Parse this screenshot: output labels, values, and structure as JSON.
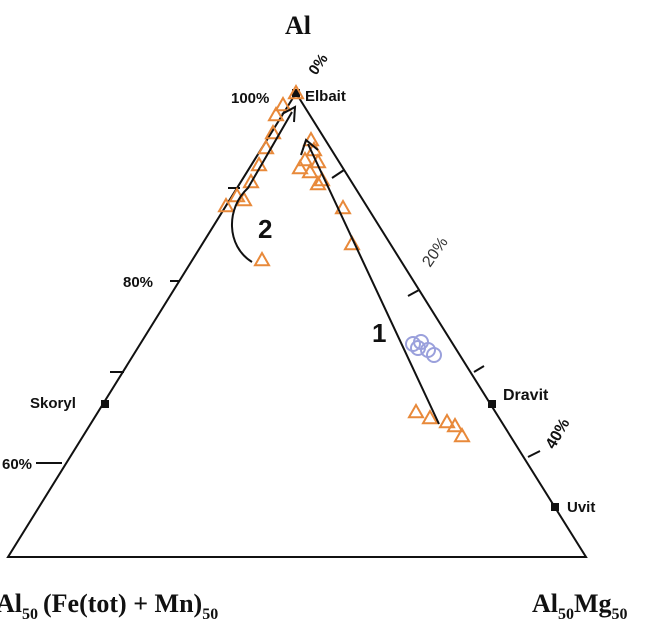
{
  "chart_data": {
    "type": "ternary",
    "vertices": {
      "top": "Al",
      "bottom_left": "Al50(Fe(tot) + Mn)50",
      "bottom_right": "Al50Mg50"
    },
    "vertex_parts": {
      "bottom_left": {
        "base": "Al",
        "sub1": "50",
        "mid": "(Fe(tot) + Mn)",
        "sub2": "50"
      },
      "bottom_right": {
        "base": "Al",
        "sub1": "50",
        "mid": "Mg",
        "sub2": "50"
      }
    },
    "left_axis_ticks": [
      "100%",
      "80%",
      "60%"
    ],
    "right_axis_ticks": [
      "0%",
      "20%",
      "40%"
    ],
    "end_members": [
      "Elbait",
      "Skoryl",
      "Dravit",
      "Uvit"
    ],
    "arrow_labels": [
      "1",
      "2"
    ],
    "colors": {
      "triangles": "#e8893a",
      "circles": "#9aa0dc",
      "axes": "#111111"
    },
    "series": [
      {
        "marker": "triangle",
        "points": [
          [
            296,
            93
          ],
          [
            283,
            105
          ],
          [
            276,
            115
          ],
          [
            273,
            133
          ],
          [
            266,
            148
          ],
          [
            259,
            165
          ],
          [
            251,
            182
          ],
          [
            237,
            196
          ],
          [
            244,
            200
          ],
          [
            226,
            206
          ],
          [
            311,
            140
          ],
          [
            314,
            150
          ],
          [
            305,
            160
          ],
          [
            300,
            168
          ],
          [
            318,
            162
          ],
          [
            310,
            172
          ],
          [
            322,
            180
          ],
          [
            318,
            184
          ],
          [
            343,
            208
          ],
          [
            352,
            244
          ],
          [
            262,
            260
          ],
          [
            416,
            412
          ],
          [
            430,
            418
          ],
          [
            447,
            422
          ],
          [
            455,
            426
          ],
          [
            462,
            436
          ]
        ]
      },
      {
        "marker": "circle",
        "points": [
          [
            413,
            344
          ],
          [
            421,
            342
          ],
          [
            428,
            350
          ],
          [
            434,
            355
          ],
          [
            418,
            348
          ]
        ]
      }
    ]
  }
}
